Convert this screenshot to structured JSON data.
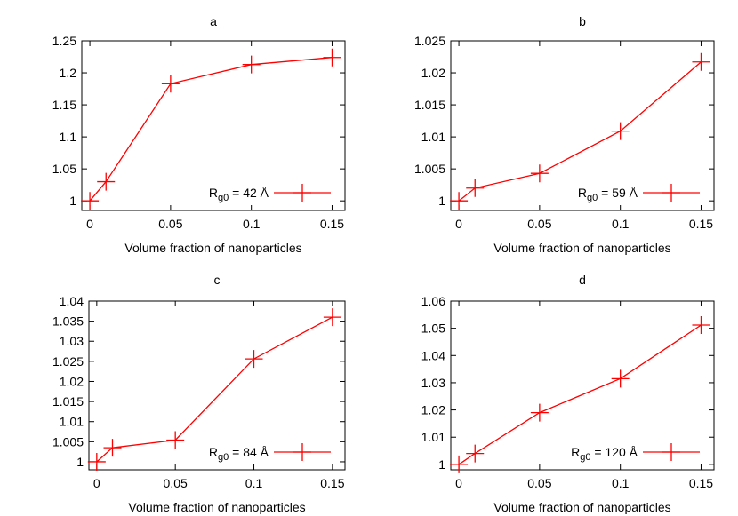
{
  "chart_data": [
    {
      "type": "line",
      "title": "a",
      "xlabel": "Volume fraction of nanoparticles",
      "ylabel": "",
      "x_tick_labels": [
        "0",
        "0.05",
        "0.1",
        "0.15"
      ],
      "y_tick_labels": [
        "1",
        "1.05",
        "1.1",
        "1.15",
        "1.2",
        "1.25"
      ],
      "y_ticks": [
        1,
        1.05,
        1.1,
        1.15,
        1.2,
        1.25
      ],
      "xlim": [
        -0.005,
        0.158
      ],
      "ylim": [
        0.985,
        1.25
      ],
      "grid": false,
      "legend_position": "bottom-right",
      "legend_label": {
        "prefix": "R",
        "subscript": "g0",
        "suffix": " = 42 Å"
      },
      "series": [
        {
          "x": [
            0,
            0.01,
            0.05,
            0.1,
            0.15
          ],
          "values": [
            1.0,
            1.03,
            1.183,
            1.213,
            1.224
          ],
          "color": "#ff0000"
        }
      ]
    },
    {
      "type": "line",
      "title": "b",
      "xlabel": "Volume fraction of nanoparticles",
      "ylabel": "",
      "x_tick_labels": [
        "0",
        "0.05",
        "0.1",
        "0.15"
      ],
      "y_tick_labels": [
        "1",
        "1.005",
        "1.01",
        "1.015",
        "1.02",
        "1.025"
      ],
      "y_ticks": [
        1,
        1.005,
        1.01,
        1.015,
        1.02,
        1.025
      ],
      "xlim": [
        -0.005,
        0.158
      ],
      "ylim": [
        0.9985,
        1.025
      ],
      "grid": false,
      "legend_position": "bottom-right",
      "legend_label": {
        "prefix": "R",
        "subscript": "g0",
        "suffix": " = 59 Å"
      },
      "series": [
        {
          "x": [
            0,
            0.01,
            0.05,
            0.1,
            0.15
          ],
          "values": [
            1.0,
            1.002,
            1.0043,
            1.0109,
            1.0217
          ],
          "color": "#ff0000"
        }
      ]
    },
    {
      "type": "line",
      "title": "c",
      "xlabel": "Volume fraction of nanoparticles",
      "ylabel": "",
      "x_tick_labels": [
        "0",
        "0.05",
        "0.1",
        "0.15"
      ],
      "y_tick_labels": [
        "1",
        "1.005",
        "1.01",
        "1.015",
        "1.02",
        "1.025",
        "1.03",
        "1.035",
        "1.04"
      ],
      "y_ticks": [
        1,
        1.005,
        1.01,
        1.015,
        1.02,
        1.025,
        1.03,
        1.035,
        1.04
      ],
      "xlim": [
        -0.005,
        0.158
      ],
      "ylim": [
        0.998,
        1.04
      ],
      "grid": false,
      "legend_position": "bottom-right",
      "legend_label": {
        "prefix": "R",
        "subscript": "g0",
        "suffix": " = 84 Å"
      },
      "series": [
        {
          "x": [
            0,
            0.01,
            0.05,
            0.1,
            0.15
          ],
          "values": [
            1.0,
            1.0035,
            1.0054,
            1.0256,
            1.036
          ],
          "color": "#ff0000"
        }
      ]
    },
    {
      "type": "line",
      "title": "d",
      "xlabel": "Volume fraction of nanoparticles",
      "ylabel": "",
      "x_tick_labels": [
        "0",
        "0.05",
        "0.1",
        "0.15"
      ],
      "y_tick_labels": [
        "1",
        "1.01",
        "1.02",
        "1.03",
        "1.04",
        "1.05",
        "1.06"
      ],
      "y_ticks": [
        1,
        1.01,
        1.02,
        1.03,
        1.04,
        1.05,
        1.06
      ],
      "xlim": [
        -0.005,
        0.158
      ],
      "ylim": [
        0.998,
        1.06
      ],
      "grid": false,
      "legend_position": "bottom-right",
      "legend_label": {
        "prefix": "R",
        "subscript": "g0",
        "suffix": " = 120 Å"
      },
      "series": [
        {
          "x": [
            0,
            0.01,
            0.05,
            0.1,
            0.15
          ],
          "values": [
            1.0,
            1.004,
            1.019,
            1.0315,
            1.0512
          ],
          "color": "#ff0000"
        }
      ]
    }
  ]
}
